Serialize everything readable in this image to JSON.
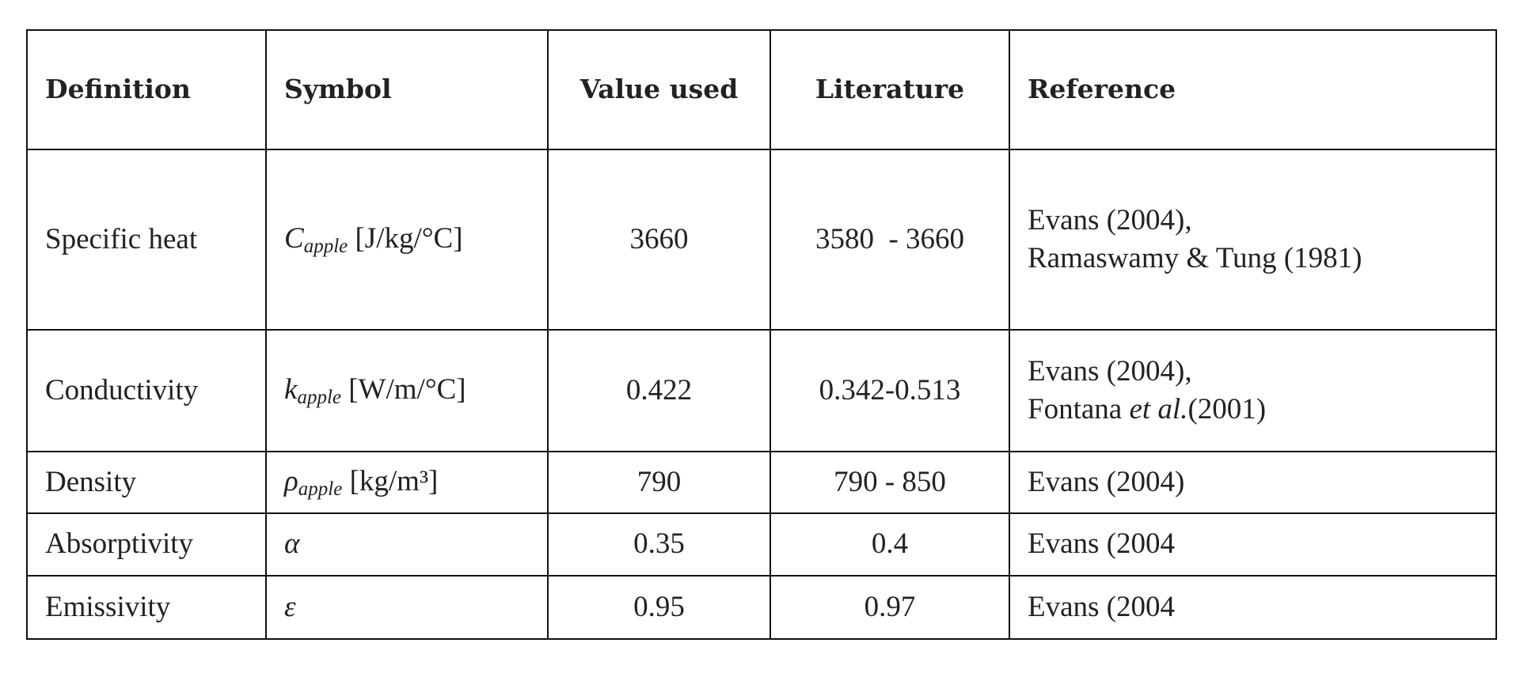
{
  "table": {
    "header": [
      "Definition",
      "Symbol",
      "Value used",
      "Literature",
      "Reference"
    ],
    "rows": [
      {
        "definition": "Specific heat",
        "symbol": {
          "main": "C",
          "sub": "apple",
          "unit": "[J/kg/°C]"
        },
        "value": 3660,
        "literature": "3580  - 3660",
        "reference": [
          [
            "Evans (2004),"
          ],
          [
            "Ramaswamy & Tung (1981)"
          ]
        ]
      },
      {
        "definition": "Conductivity",
        "symbol": {
          "main": "k",
          "sub": "apple",
          "unit": "[W/m/°C]"
        },
        "value": 0.422,
        "literature": "0.342-0.513",
        "reference": [
          [
            "Evans (2004),"
          ],
          [
            "Fontana ",
            "et al.",
            "(2001)"
          ]
        ]
      },
      {
        "definition": "Density",
        "symbol": {
          "main": "ρ",
          "sub": "apple",
          "unit": "[kg/m³]"
        },
        "value": 790,
        "literature": "790 - 850",
        "reference": [
          [
            "Evans (2004)"
          ]
        ]
      },
      {
        "definition": "Absorptivity",
        "symbol": {
          "main": "α"
        },
        "value": 0.35,
        "literature": "0.4",
        "reference": [
          [
            "Evans (2004"
          ]
        ]
      },
      {
        "definition": "Emissivity",
        "symbol": {
          "main": "ε"
        },
        "value": 0.95,
        "literature": "0.97",
        "reference": [
          [
            "Evans (2004"
          ]
        ]
      }
    ]
  }
}
